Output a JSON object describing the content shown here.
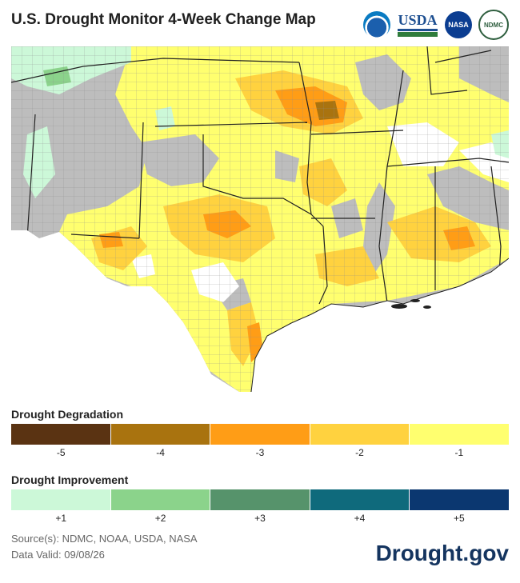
{
  "title": "U.S. Drought Monitor 4-Week Change Map",
  "logos": {
    "noaa": "NOAA",
    "usda": "USDA",
    "nasa": "NASA",
    "ndmc": "NDMC"
  },
  "map_legend_colors": {
    "no_data_gray": "#bdbdbd",
    "no_change_white": "#ffffff",
    "state_border": "#222222",
    "county_border": "#8c8c8c"
  },
  "legend": {
    "degradation_title": "Drought Degradation",
    "degradation": [
      {
        "label": "-5",
        "color": "#5a3312"
      },
      {
        "label": "-4",
        "color": "#a9730f"
      },
      {
        "label": "-3",
        "color": "#ff9d16"
      },
      {
        "label": "-2",
        "color": "#ffd23f"
      },
      {
        "label": "-1",
        "color": "#ffff6f"
      }
    ],
    "improvement_title": "Drought Improvement",
    "improvement": [
      {
        "label": "+1",
        "color": "#ccf8d8"
      },
      {
        "label": "+2",
        "color": "#8bd38b"
      },
      {
        "label": "+3",
        "color": "#56936b"
      },
      {
        "label": "+4",
        "color": "#0f6a7c"
      },
      {
        "label": "+5",
        "color": "#0b3770"
      }
    ]
  },
  "footer": {
    "source": "Source(s): NDMC, NOAA, USDA, NASA",
    "valid": "Data Valid: 09/08/26",
    "brand": "Drought.gov"
  }
}
